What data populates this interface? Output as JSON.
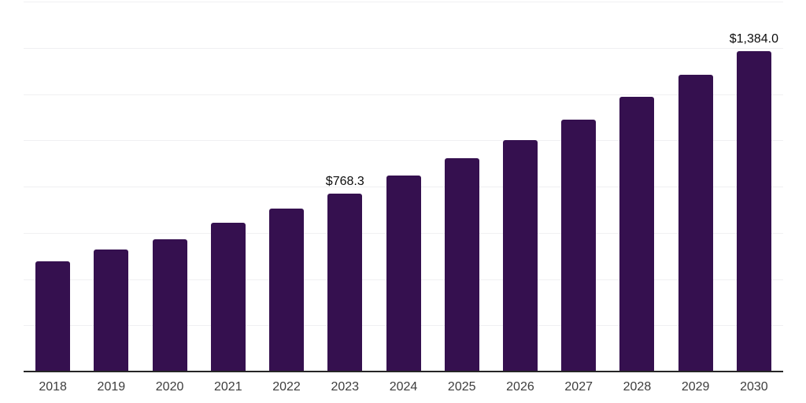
{
  "chart_data": {
    "type": "bar",
    "title": "",
    "xlabel": "",
    "ylabel": "",
    "categories": [
      "2018",
      "2019",
      "2020",
      "2021",
      "2022",
      "2023",
      "2024",
      "2025",
      "2026",
      "2027",
      "2028",
      "2029",
      "2030"
    ],
    "values": [
      476,
      528,
      572,
      643,
      705,
      768.3,
      848,
      922,
      1001,
      1089,
      1188,
      1283,
      1384
    ],
    "data_labels": {
      "2023": "$768.3",
      "2030": "$1,384.0"
    },
    "ylim": [
      0,
      1600
    ],
    "gridline_step": 200,
    "grid": true,
    "legend": "none",
    "y_axis_labels_visible": false,
    "colors": {
      "bar": "#35104f",
      "gridline": "#f0f0f2",
      "axis_line": "#262626",
      "tick_label": "#3d3d3d",
      "data_label": "#0d0d0d",
      "background": "#ffffff"
    }
  }
}
